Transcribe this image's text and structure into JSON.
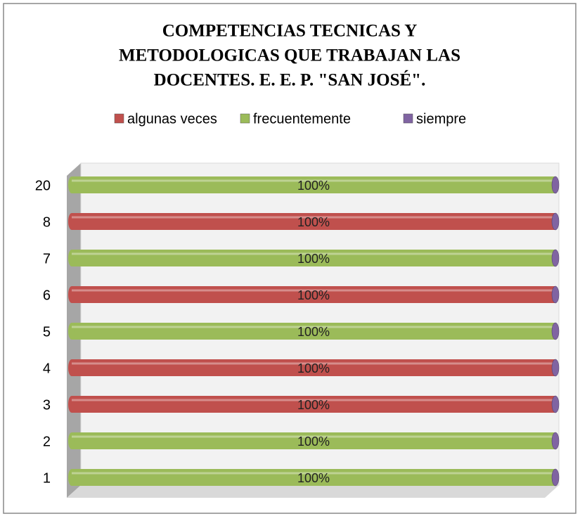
{
  "chart_data": {
    "type": "bar",
    "title": [
      "COMPETENCIAS TECNICAS Y",
      "METODOLOGICAS QUE TRABAJAN LAS",
      "DOCENTES. E. E. P. \"SAN JOSÉ\"."
    ],
    "categories": [
      "1",
      "2",
      "3",
      "4",
      "5",
      "6",
      "7",
      "8",
      "20"
    ],
    "series": [
      {
        "name": "algunas veces",
        "color": "#c0504d",
        "values": [
          0,
          0,
          100,
          100,
          0,
          100,
          0,
          100,
          0
        ],
        "value_labels": [
          null,
          null,
          "100%",
          "100%",
          null,
          "100%",
          null,
          "100%",
          null
        ]
      },
      {
        "name": "frecuentemente",
        "color": "#9bbb59",
        "values": [
          100,
          100,
          0,
          0,
          100,
          0,
          100,
          0,
          100
        ],
        "value_labels": [
          "100%",
          "100%",
          null,
          null,
          "100%",
          null,
          "100%",
          null,
          "100%"
        ]
      },
      {
        "name": "siempre",
        "color": "#8064a2",
        "values": [
          0,
          0,
          0,
          0,
          0,
          0,
          0,
          0,
          0
        ]
      }
    ],
    "xlim": [
      0,
      100
    ],
    "stacked": true,
    "legend": "top"
  }
}
